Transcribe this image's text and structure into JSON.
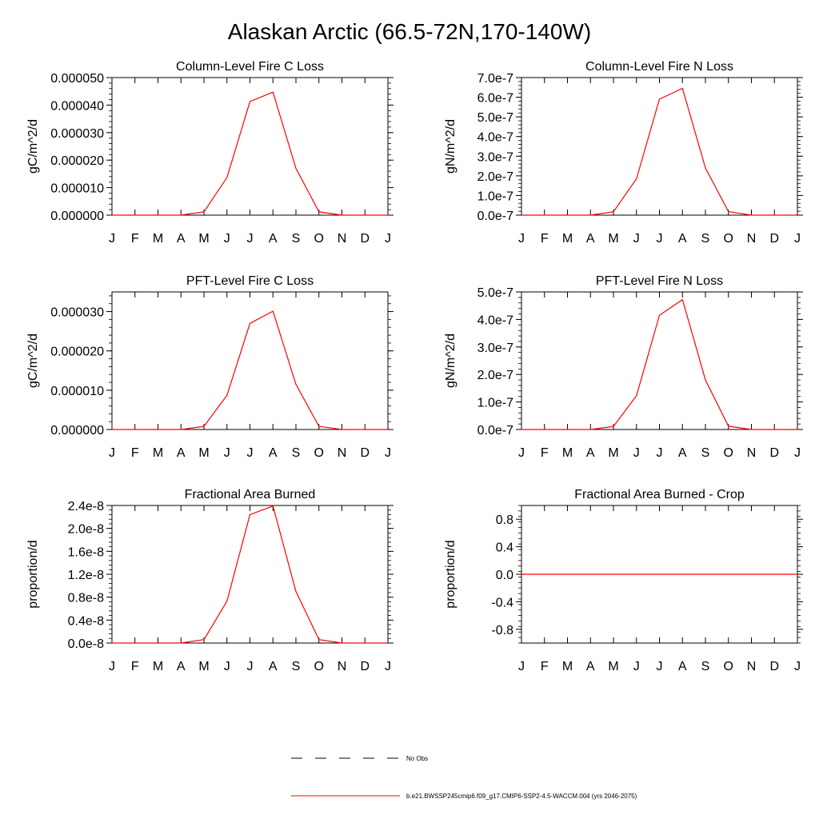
{
  "main_title": "Alaskan Arctic (66.5-72N,170-140W)",
  "months": [
    "J",
    "F",
    "M",
    "A",
    "M",
    "J",
    "J",
    "A",
    "S",
    "O",
    "N",
    "D",
    "J"
  ],
  "line_color": "#ff0000",
  "legend": {
    "obs_label": "No Obs",
    "model_label": "b.e21.BWSSP245cmip6.f09_g17.CMIP6-SSP2-4.5-WACCM.004 (yrs 2046-2075)"
  },
  "chart_data": [
    {
      "type": "line",
      "title": "Column-Level Fire C Loss",
      "ylabel": "gC/m^2/d",
      "ylim": [
        0,
        5e-05
      ],
      "yticks": [
        0,
        1e-05,
        2e-05,
        3e-05,
        4e-05,
        5e-05
      ],
      "ytick_labels": [
        "0.000000",
        "0.000010",
        "0.000020",
        "0.000030",
        "0.000040",
        "0.000050"
      ],
      "series": [
        {
          "values": [
            0,
            0,
            0,
            0,
            1.2e-06,
            1.37e-05,
            4.13e-05,
            4.47e-05,
            1.7e-05,
            1.2e-06,
            0,
            0,
            0
          ]
        }
      ]
    },
    {
      "type": "line",
      "title": "Column-Level Fire N Loss",
      "ylabel": "gN/m^2/d",
      "ylim": [
        0,
        7e-07
      ],
      "yticks": [
        0,
        1e-07,
        2e-07,
        3e-07,
        4e-07,
        5e-07,
        6e-07,
        7e-07
      ],
      "ytick_labels": [
        "0.0e-7",
        "1.0e-7",
        "2.0e-7",
        "3.0e-7",
        "4.0e-7",
        "5.0e-7",
        "6.0e-7",
        "7.0e-7"
      ],
      "series": [
        {
          "values": [
            0,
            0,
            0,
            0,
            1.7e-08,
            1.85e-07,
            5.9e-07,
            6.45e-07,
            2.4e-07,
            1.8e-08,
            0,
            0,
            0
          ]
        }
      ]
    },
    {
      "type": "line",
      "title": "PFT-Level Fire C Loss",
      "ylabel": "gC/m^2/d",
      "ylim": [
        0,
        3.5e-05
      ],
      "yticks": [
        0,
        1e-05,
        2e-05,
        3e-05
      ],
      "ytick_labels": [
        "0.000000",
        "0.000010",
        "0.000020",
        "0.000030"
      ],
      "series": [
        {
          "values": [
            0,
            0,
            0,
            0,
            8e-07,
            8.7e-06,
            2.7e-05,
            3.01e-05,
            1.15e-05,
            8e-07,
            0,
            0,
            0
          ]
        }
      ]
    },
    {
      "type": "line",
      "title": "PFT-Level Fire N Loss",
      "ylabel": "gN/m^2/d",
      "ylim": [
        0,
        5e-07
      ],
      "yticks": [
        0,
        1e-07,
        2e-07,
        3e-07,
        4e-07,
        5e-07
      ],
      "ytick_labels": [
        "0.0e-7",
        "1.0e-7",
        "2.0e-7",
        "3.0e-7",
        "4.0e-7",
        "5.0e-7"
      ],
      "series": [
        {
          "values": [
            0,
            0,
            0,
            0,
            1.1e-08,
            1.23e-07,
            4.15e-07,
            4.72e-07,
            1.8e-07,
            1.2e-08,
            0,
            0,
            0
          ]
        }
      ]
    },
    {
      "type": "line",
      "title": "Fractional Area Burned",
      "ylabel": "proportion/d",
      "ylim": [
        0,
        2.4e-08
      ],
      "yticks": [
        0,
        4e-09,
        8e-09,
        1.2e-08,
        1.6e-08,
        2e-08,
        2.4e-08
      ],
      "ytick_labels": [
        "0.0e-8",
        "0.4e-8",
        "0.8e-8",
        "1.2e-8",
        "1.6e-8",
        "2.0e-8",
        "2.4e-8"
      ],
      "series": [
        {
          "values": [
            0,
            0,
            0,
            0,
            6e-10,
            7.3e-09,
            2.24e-08,
            2.39e-08,
            9e-09,
            6e-10,
            0,
            0,
            0
          ]
        }
      ]
    },
    {
      "type": "line",
      "title": "Fractional Area Burned - Crop",
      "ylabel": "proportion/d",
      "ylim": [
        -1,
        1
      ],
      "yticks": [
        -0.8,
        -0.4,
        0,
        0.4,
        0.8
      ],
      "ytick_labels": [
        "-0.8",
        "-0.4",
        "0.0",
        "0.4",
        "0.8"
      ],
      "series": [
        {
          "values": [
            0,
            0,
            0,
            0,
            0,
            0,
            0,
            0,
            0,
            0,
            0,
            0,
            0
          ]
        }
      ]
    }
  ]
}
